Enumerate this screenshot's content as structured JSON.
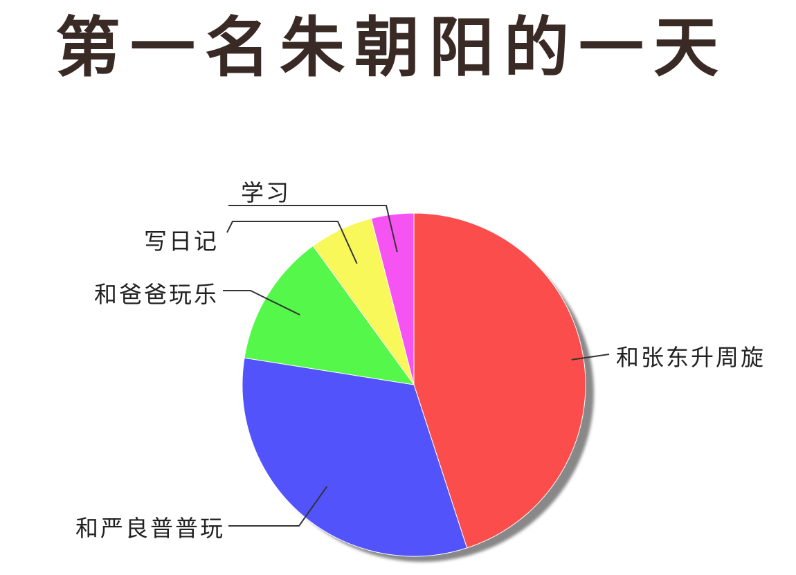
{
  "chart_data": {
    "type": "pie",
    "title": "第一名朱朝阳的一天",
    "slices": [
      {
        "label": "和张东升周旋",
        "value": 45,
        "color": "#fc4d4d"
      },
      {
        "label": "和严良普普玩",
        "value": 32.5,
        "color": "#5353fc"
      },
      {
        "label": "和爸爸玩乐",
        "value": 12.5,
        "color": "#55f74b"
      },
      {
        "label": "写日记",
        "value": 6,
        "color": "#f8f85a"
      },
      {
        "label": "学习",
        "value": 4,
        "color": "#f653f3"
      }
    ],
    "start": "12 o'clock",
    "direction": "clockwise",
    "legend": "none"
  }
}
